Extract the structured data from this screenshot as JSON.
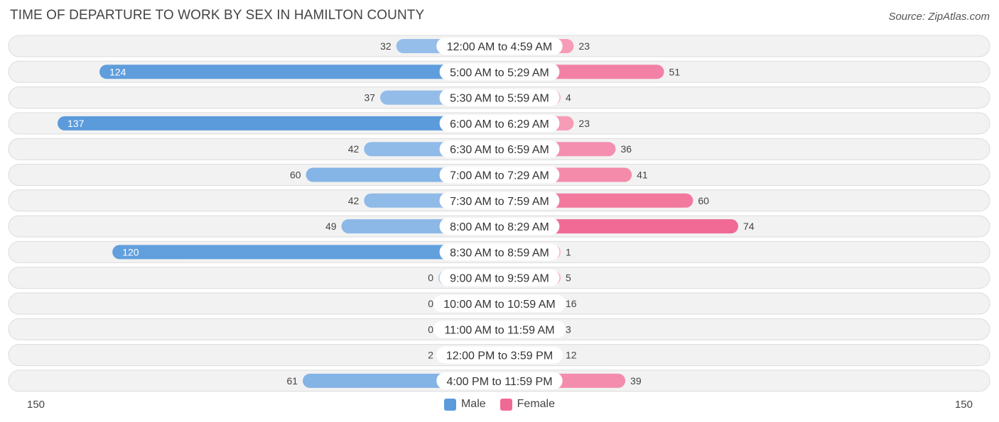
{
  "title": "TIME OF DEPARTURE TO WORK BY SEX IN HAMILTON COUNTY",
  "source": "Source: ZipAtlas.com",
  "axis": {
    "left_label": "150",
    "right_label": "150"
  },
  "legend": {
    "male_label": "Male",
    "female_label": "Female"
  },
  "colors": {
    "male": "#5b9bdc",
    "male_light": "#a9c9ee",
    "female": "#f06a95",
    "female_light": "#f8b3c7"
  },
  "chart_data": {
    "type": "bar",
    "orientation": "horizontal-diverging",
    "xlim": [
      -150,
      150
    ],
    "categories": [
      "12:00 AM to 4:59 AM",
      "5:00 AM to 5:29 AM",
      "5:30 AM to 5:59 AM",
      "6:00 AM to 6:29 AM",
      "6:30 AM to 6:59 AM",
      "7:00 AM to 7:29 AM",
      "7:30 AM to 7:59 AM",
      "8:00 AM to 8:29 AM",
      "8:30 AM to 8:59 AM",
      "9:00 AM to 9:59 AM",
      "10:00 AM to 10:59 AM",
      "11:00 AM to 11:59 AM",
      "12:00 PM to 3:59 PM",
      "4:00 PM to 11:59 PM"
    ],
    "series": [
      {
        "name": "Male",
        "values": [
          32,
          124,
          37,
          137,
          42,
          60,
          42,
          49,
          120,
          0,
          0,
          0,
          2,
          61
        ]
      },
      {
        "name": "Female",
        "values": [
          23,
          51,
          4,
          23,
          36,
          41,
          60,
          74,
          1,
          5,
          16,
          3,
          12,
          39
        ]
      }
    ],
    "legend_position": "bottom-center"
  }
}
